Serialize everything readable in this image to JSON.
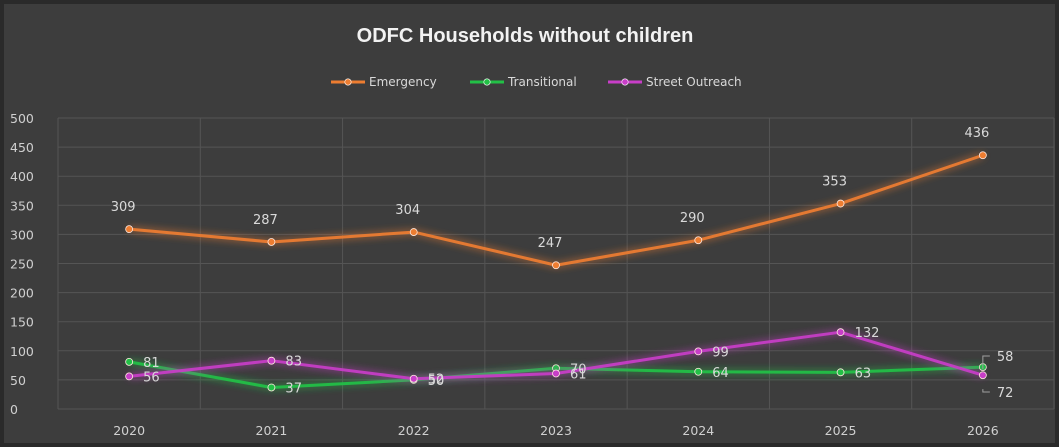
{
  "chart_data": {
    "type": "line",
    "title": "ODFC Households without children",
    "categories": [
      "2020",
      "2021",
      "2022",
      "2023",
      "2024",
      "2025",
      "2026"
    ],
    "y_ticks": [
      "0",
      "50",
      "100",
      "150",
      "200",
      "250",
      "300",
      "350",
      "400",
      "450",
      "500"
    ],
    "ylim": [
      0,
      500
    ],
    "grid": "vertical and horizontal",
    "legend_position": "top",
    "series": [
      {
        "name": "Emergency",
        "color": "#ed7d31",
        "values": [
          309,
          287,
          304,
          247,
          290,
          353,
          436
        ],
        "labels": [
          "309",
          "287",
          "304",
          "247",
          "290",
          "353",
          "436"
        ]
      },
      {
        "name": "Transitional",
        "color": "#22c046",
        "values": [
          81,
          37,
          50,
          70,
          64,
          63,
          72
        ],
        "labels": [
          "81",
          "37",
          "50",
          "70",
          "64",
          "63",
          "72"
        ]
      },
      {
        "name": "Street Outreach",
        "color": "#c83ec8",
        "values": [
          56,
          83,
          52,
          61,
          99,
          132,
          58
        ],
        "labels": [
          "56",
          "83",
          "52",
          "61",
          "99",
          "132",
          "58"
        ]
      }
    ]
  }
}
